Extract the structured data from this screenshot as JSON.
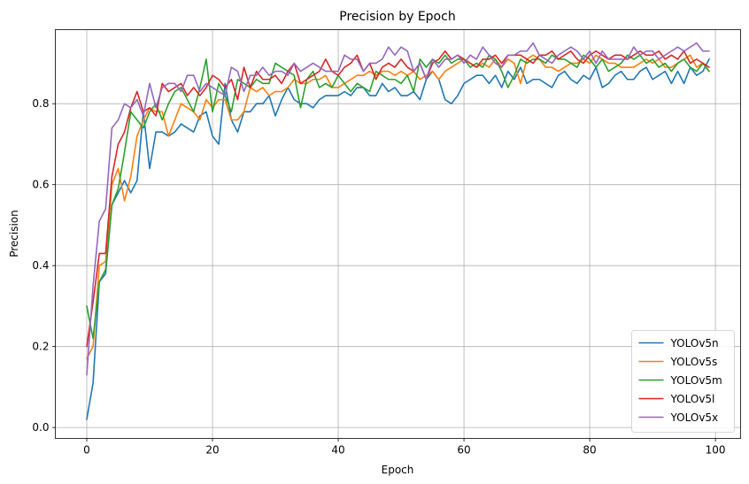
{
  "chart_data": {
    "type": "line",
    "title": "Precision by Epoch",
    "xlabel": "Epoch",
    "ylabel": "Precision",
    "xlim": [
      -5,
      104
    ],
    "ylim": [
      -0.027,
      0.983
    ],
    "xticks": [
      0,
      20,
      40,
      60,
      80,
      100
    ],
    "xtick_labels": [
      "0",
      "20",
      "40",
      "60",
      "80",
      "100"
    ],
    "yticks": [
      0.0,
      0.2,
      0.4,
      0.6,
      0.8
    ],
    "ytick_labels": [
      "0.0",
      "0.2",
      "0.4",
      "0.6",
      "0.8"
    ],
    "grid": true,
    "legend_position": "lower-right",
    "x": [
      0,
      1,
      2,
      3,
      4,
      5,
      6,
      7,
      8,
      9,
      10,
      11,
      12,
      13,
      14,
      15,
      16,
      17,
      18,
      19,
      20,
      21,
      22,
      23,
      24,
      25,
      26,
      27,
      28,
      29,
      30,
      31,
      32,
      33,
      34,
      35,
      36,
      37,
      38,
      39,
      40,
      41,
      42,
      43,
      44,
      45,
      46,
      47,
      48,
      49,
      50,
      51,
      52,
      53,
      54,
      55,
      56,
      57,
      58,
      59,
      60,
      61,
      62,
      63,
      64,
      65,
      66,
      67,
      68,
      69,
      70,
      71,
      72,
      73,
      74,
      75,
      76,
      77,
      78,
      79,
      80,
      81,
      82,
      83,
      84,
      85,
      86,
      87,
      88,
      89,
      90,
      91,
      92,
      93,
      94,
      95,
      96,
      97,
      98,
      99
    ],
    "series": [
      {
        "name": "YOLOv5n",
        "color": "#1f77b4",
        "values": [
          0.02,
          0.11,
          0.36,
          0.38,
          0.55,
          0.58,
          0.61,
          0.58,
          0.61,
          0.78,
          0.64,
          0.73,
          0.73,
          0.72,
          0.73,
          0.75,
          0.74,
          0.73,
          0.77,
          0.78,
          0.72,
          0.7,
          0.85,
          0.76,
          0.73,
          0.78,
          0.78,
          0.8,
          0.8,
          0.82,
          0.77,
          0.81,
          0.84,
          0.81,
          0.8,
          0.8,
          0.79,
          0.81,
          0.82,
          0.82,
          0.82,
          0.83,
          0.82,
          0.84,
          0.84,
          0.82,
          0.82,
          0.85,
          0.83,
          0.84,
          0.82,
          0.82,
          0.83,
          0.81,
          0.86,
          0.88,
          0.86,
          0.81,
          0.8,
          0.82,
          0.85,
          0.86,
          0.87,
          0.87,
          0.85,
          0.87,
          0.84,
          0.88,
          0.86,
          0.89,
          0.85,
          0.86,
          0.86,
          0.85,
          0.84,
          0.87,
          0.88,
          0.86,
          0.85,
          0.87,
          0.86,
          0.89,
          0.84,
          0.85,
          0.87,
          0.88,
          0.86,
          0.86,
          0.88,
          0.89,
          0.86,
          0.87,
          0.88,
          0.85,
          0.88,
          0.85,
          0.89,
          0.87,
          0.88,
          0.91
        ]
      },
      {
        "name": "YOLOv5s",
        "color": "#ff7f0e",
        "values": [
          0.17,
          0.2,
          0.4,
          0.41,
          0.6,
          0.64,
          0.56,
          0.62,
          0.72,
          0.76,
          0.79,
          0.78,
          0.78,
          0.72,
          0.76,
          0.8,
          0.79,
          0.78,
          0.76,
          0.81,
          0.79,
          0.81,
          0.81,
          0.76,
          0.76,
          0.78,
          0.84,
          0.83,
          0.84,
          0.82,
          0.83,
          0.83,
          0.84,
          0.86,
          0.85,
          0.85,
          0.86,
          0.86,
          0.87,
          0.84,
          0.84,
          0.85,
          0.86,
          0.87,
          0.87,
          0.88,
          0.87,
          0.88,
          0.88,
          0.87,
          0.88,
          0.87,
          0.88,
          0.86,
          0.87,
          0.88,
          0.86,
          0.88,
          0.89,
          0.9,
          0.91,
          0.9,
          0.89,
          0.9,
          0.89,
          0.91,
          0.89,
          0.91,
          0.9,
          0.85,
          0.91,
          0.92,
          0.91,
          0.89,
          0.89,
          0.88,
          0.89,
          0.9,
          0.9,
          0.91,
          0.9,
          0.92,
          0.91,
          0.9,
          0.9,
          0.89,
          0.89,
          0.89,
          0.9,
          0.91,
          0.9,
          0.91,
          0.89,
          0.89,
          0.9,
          0.91,
          0.92,
          0.89,
          0.9,
          0.88
        ]
      },
      {
        "name": "YOLOv5m",
        "color": "#2ca02c",
        "values": [
          0.3,
          0.22,
          0.36,
          0.39,
          0.55,
          0.59,
          0.68,
          0.78,
          0.76,
          0.74,
          0.78,
          0.8,
          0.76,
          0.8,
          0.83,
          0.84,
          0.81,
          0.78,
          0.84,
          0.91,
          0.78,
          0.85,
          0.82,
          0.78,
          0.86,
          0.85,
          0.84,
          0.86,
          0.85,
          0.85,
          0.9,
          0.89,
          0.88,
          0.87,
          0.79,
          0.86,
          0.88,
          0.84,
          0.85,
          0.84,
          0.87,
          0.85,
          0.83,
          0.85,
          0.84,
          0.83,
          0.88,
          0.87,
          0.86,
          0.86,
          0.85,
          0.87,
          0.83,
          0.91,
          0.89,
          0.91,
          0.9,
          0.92,
          0.9,
          0.91,
          0.91,
          0.89,
          0.9,
          0.89,
          0.92,
          0.91,
          0.88,
          0.84,
          0.87,
          0.91,
          0.9,
          0.91,
          0.91,
          0.9,
          0.92,
          0.91,
          0.91,
          0.9,
          0.89,
          0.92,
          0.91,
          0.89,
          0.91,
          0.88,
          0.89,
          0.9,
          0.92,
          0.91,
          0.92,
          0.9,
          0.91,
          0.89,
          0.9,
          0.88,
          0.9,
          0.91,
          0.89,
          0.88,
          0.9,
          0.88
        ]
      },
      {
        "name": "YOLOv5l",
        "color": "#d62728",
        "values": [
          0.2,
          0.31,
          0.43,
          0.43,
          0.62,
          0.7,
          0.73,
          0.79,
          0.83,
          0.78,
          0.79,
          0.77,
          0.85,
          0.83,
          0.84,
          0.85,
          0.82,
          0.84,
          0.82,
          0.84,
          0.87,
          0.86,
          0.84,
          0.86,
          0.81,
          0.89,
          0.84,
          0.88,
          0.86,
          0.86,
          0.87,
          0.85,
          0.88,
          0.9,
          0.85,
          0.86,
          0.87,
          0.88,
          0.91,
          0.88,
          0.87,
          0.89,
          0.9,
          0.92,
          0.88,
          0.9,
          0.86,
          0.89,
          0.9,
          0.89,
          0.91,
          0.89,
          0.88,
          0.9,
          0.86,
          0.9,
          0.91,
          0.93,
          0.91,
          0.92,
          0.91,
          0.9,
          0.89,
          0.91,
          0.91,
          0.92,
          0.9,
          0.92,
          0.92,
          0.92,
          0.91,
          0.9,
          0.92,
          0.92,
          0.93,
          0.91,
          0.92,
          0.93,
          0.91,
          0.9,
          0.92,
          0.93,
          0.92,
          0.91,
          0.92,
          0.92,
          0.91,
          0.92,
          0.93,
          0.92,
          0.92,
          0.93,
          0.91,
          0.92,
          0.91,
          0.93,
          0.9,
          0.91,
          0.9,
          0.89
        ]
      },
      {
        "name": "YOLOv5x",
        "color": "#9467bd",
        "values": [
          0.13,
          0.35,
          0.51,
          0.54,
          0.74,
          0.76,
          0.8,
          0.79,
          0.81,
          0.77,
          0.85,
          0.79,
          0.84,
          0.85,
          0.85,
          0.83,
          0.87,
          0.87,
          0.83,
          0.85,
          0.84,
          0.83,
          0.82,
          0.89,
          0.88,
          0.83,
          0.87,
          0.87,
          0.89,
          0.87,
          0.88,
          0.88,
          0.87,
          0.9,
          0.88,
          0.89,
          0.9,
          0.89,
          0.88,
          0.88,
          0.88,
          0.92,
          0.91,
          0.91,
          0.88,
          0.9,
          0.9,
          0.91,
          0.94,
          0.92,
          0.94,
          0.93,
          0.88,
          0.9,
          0.86,
          0.91,
          0.89,
          0.91,
          0.91,
          0.92,
          0.9,
          0.92,
          0.91,
          0.94,
          0.92,
          0.9,
          0.89,
          0.92,
          0.92,
          0.93,
          0.93,
          0.95,
          0.92,
          0.91,
          0.9,
          0.92,
          0.93,
          0.94,
          0.93,
          0.91,
          0.93,
          0.9,
          0.93,
          0.91,
          0.91,
          0.91,
          0.91,
          0.94,
          0.92,
          0.93,
          0.93,
          0.91,
          0.92,
          0.93,
          0.94,
          0.93,
          0.94,
          0.95,
          0.93,
          0.93
        ]
      }
    ]
  }
}
